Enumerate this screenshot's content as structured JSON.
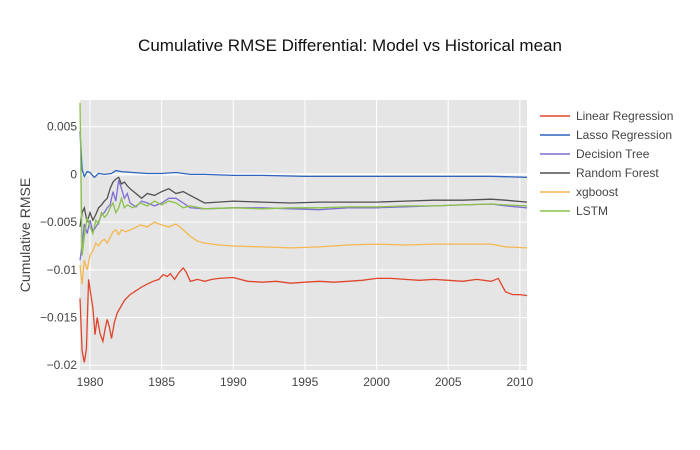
{
  "chart_data": {
    "type": "line",
    "title": "Cumulative RMSE Differential: Model vs Historical mean",
    "xlabel": "",
    "ylabel": "Cumulative RMSE",
    "xlim": [
      1979.3,
      2010.5
    ],
    "ylim": [
      -0.0205,
      0.0078
    ],
    "xticks": [
      1980,
      1985,
      1990,
      1995,
      2000,
      2005,
      2010
    ],
    "xtick_labels": [
      "1980",
      "1985",
      "1990",
      "1995",
      "2000",
      "2005",
      "2010"
    ],
    "yticks": [
      0.005,
      0,
      -0.005,
      -0.01,
      -0.015,
      -0.02
    ],
    "ytick_labels": [
      "0.005",
      "0",
      "−0.005",
      "−0.01",
      "−0.015",
      "−0.02"
    ],
    "grid": true,
    "legend_position": "top-right",
    "plot_background": "#e5e5e5",
    "series": [
      {
        "name": "Linear Regression",
        "color": "#e0452b",
        "points": [
          [
            1979.3,
            -0.013
          ],
          [
            1979.45,
            -0.0185
          ],
          [
            1979.6,
            -0.0197
          ],
          [
            1979.75,
            -0.0183
          ],
          [
            1979.9,
            -0.011
          ],
          [
            1980.05,
            -0.0125
          ],
          [
            1980.2,
            -0.014
          ],
          [
            1980.35,
            -0.0168
          ],
          [
            1980.5,
            -0.015
          ],
          [
            1980.7,
            -0.0167
          ],
          [
            1980.9,
            -0.0175
          ],
          [
            1981.05,
            -0.0162
          ],
          [
            1981.2,
            -0.0152
          ],
          [
            1981.35,
            -0.016
          ],
          [
            1981.5,
            -0.0172
          ],
          [
            1981.7,
            -0.0155
          ],
          [
            1981.9,
            -0.0145
          ],
          [
            1982.1,
            -0.014
          ],
          [
            1982.4,
            -0.0132
          ],
          [
            1982.8,
            -0.0126
          ],
          [
            1983.2,
            -0.0122
          ],
          [
            1983.6,
            -0.0118
          ],
          [
            1984.0,
            -0.0115
          ],
          [
            1984.4,
            -0.0112
          ],
          [
            1984.8,
            -0.011
          ],
          [
            1985.1,
            -0.0105
          ],
          [
            1985.4,
            -0.0107
          ],
          [
            1985.6,
            -0.0104
          ],
          [
            1985.9,
            -0.011
          ],
          [
            1986.2,
            -0.0103
          ],
          [
            1986.5,
            -0.0098
          ],
          [
            1986.7,
            -0.0102
          ],
          [
            1987.0,
            -0.0112
          ],
          [
            1987.5,
            -0.011
          ],
          [
            1988.0,
            -0.0112
          ],
          [
            1988.5,
            -0.011
          ],
          [
            1989.0,
            -0.0109
          ],
          [
            1990.0,
            -0.0108
          ],
          [
            1991.0,
            -0.0112
          ],
          [
            1992.0,
            -0.0113
          ],
          [
            1993.0,
            -0.0112
          ],
          [
            1994.0,
            -0.0114
          ],
          [
            1995.0,
            -0.0113
          ],
          [
            1996.0,
            -0.0112
          ],
          [
            1997.0,
            -0.0113
          ],
          [
            1998.0,
            -0.0112
          ],
          [
            1999.0,
            -0.0111
          ],
          [
            2000.0,
            -0.0109
          ],
          [
            2001.0,
            -0.0109
          ],
          [
            2002.0,
            -0.011
          ],
          [
            2003.0,
            -0.0111
          ],
          [
            2004.0,
            -0.011
          ],
          [
            2005.0,
            -0.0111
          ],
          [
            2006.0,
            -0.0112
          ],
          [
            2007.0,
            -0.011
          ],
          [
            2008.0,
            -0.0112
          ],
          [
            2008.5,
            -0.0109
          ],
          [
            2009.0,
            -0.0123
          ],
          [
            2009.5,
            -0.0126
          ],
          [
            2010.0,
            -0.0126
          ],
          [
            2010.5,
            -0.0127
          ]
        ]
      },
      {
        "name": "Lasso Regression",
        "color": "#2e64bd",
        "points": [
          [
            1979.3,
            0.0045
          ],
          [
            1979.45,
            0.0005
          ],
          [
            1979.6,
            -0.0002
          ],
          [
            1979.8,
            0.0003
          ],
          [
            1980.0,
            0.0002
          ],
          [
            1980.3,
            -0.0003
          ],
          [
            1980.6,
            0.0001
          ],
          [
            1981.0,
            0.0
          ],
          [
            1981.5,
            0.0001
          ],
          [
            1981.8,
            0.0004
          ],
          [
            1982.2,
            0.0003
          ],
          [
            1983.0,
            0.0002
          ],
          [
            1984.0,
            0.0001
          ],
          [
            1985.0,
            0.0001
          ],
          [
            1986.0,
            0.0002
          ],
          [
            1987.0,
            0.0
          ],
          [
            1988.0,
            0.0
          ],
          [
            1990.0,
            -0.0001
          ],
          [
            1992.0,
            -0.0001
          ],
          [
            1995.0,
            -0.0002
          ],
          [
            2000.0,
            -0.0002
          ],
          [
            2005.0,
            -0.0002
          ],
          [
            2008.0,
            -0.0002
          ],
          [
            2010.5,
            -0.0003
          ]
        ]
      },
      {
        "name": "Decision Tree",
        "color": "#7f6fd2",
        "points": [
          [
            1979.3,
            -0.009
          ],
          [
            1979.45,
            -0.0075
          ],
          [
            1979.6,
            -0.0052
          ],
          [
            1979.8,
            -0.0062
          ],
          [
            1980.0,
            -0.0048
          ],
          [
            1980.2,
            -0.006
          ],
          [
            1980.4,
            -0.0055
          ],
          [
            1980.6,
            -0.005
          ],
          [
            1980.8,
            -0.0042
          ],
          [
            1981.0,
            -0.004
          ],
          [
            1981.2,
            -0.0035
          ],
          [
            1981.4,
            -0.0032
          ],
          [
            1981.6,
            -0.0018
          ],
          [
            1981.8,
            -0.0028
          ],
          [
            1982.0,
            -0.0006
          ],
          [
            1982.2,
            -0.0015
          ],
          [
            1982.4,
            -0.0025
          ],
          [
            1982.6,
            -0.002
          ],
          [
            1982.8,
            -0.003
          ],
          [
            1983.2,
            -0.0034
          ],
          [
            1983.6,
            -0.0028
          ],
          [
            1984.0,
            -0.003
          ],
          [
            1984.5,
            -0.0033
          ],
          [
            1985.0,
            -0.003
          ],
          [
            1985.5,
            -0.0025
          ],
          [
            1986.0,
            -0.0025
          ],
          [
            1986.5,
            -0.003
          ],
          [
            1987.0,
            -0.0035
          ],
          [
            1988.0,
            -0.0036
          ],
          [
            1990.0,
            -0.0035
          ],
          [
            1992.0,
            -0.0035
          ],
          [
            1994.0,
            -0.0036
          ],
          [
            1996.0,
            -0.0037
          ],
          [
            1998.0,
            -0.0035
          ],
          [
            2000.0,
            -0.0035
          ],
          [
            2002.0,
            -0.0034
          ],
          [
            2004.0,
            -0.0033
          ],
          [
            2006.0,
            -0.0032
          ],
          [
            2008.0,
            -0.0031
          ],
          [
            2009.0,
            -0.0033
          ],
          [
            2010.5,
            -0.0035
          ]
        ]
      },
      {
        "name": "Random Forest",
        "color": "#505050",
        "points": [
          [
            1979.3,
            -0.0055
          ],
          [
            1979.45,
            -0.004
          ],
          [
            1979.6,
            -0.0035
          ],
          [
            1979.8,
            -0.005
          ],
          [
            1980.0,
            -0.004
          ],
          [
            1980.2,
            -0.0048
          ],
          [
            1980.4,
            -0.0042
          ],
          [
            1980.6,
            -0.0035
          ],
          [
            1980.8,
            -0.0032
          ],
          [
            1981.0,
            -0.0028
          ],
          [
            1981.2,
            -0.0025
          ],
          [
            1981.4,
            -0.0015
          ],
          [
            1981.6,
            -0.0008
          ],
          [
            1981.8,
            -0.0005
          ],
          [
            1982.0,
            -0.0003
          ],
          [
            1982.2,
            -0.001
          ],
          [
            1982.4,
            -0.0008
          ],
          [
            1982.6,
            -0.0012
          ],
          [
            1982.8,
            -0.0015
          ],
          [
            1983.2,
            -0.002
          ],
          [
            1983.6,
            -0.0025
          ],
          [
            1984.0,
            -0.002
          ],
          [
            1984.5,
            -0.0022
          ],
          [
            1985.0,
            -0.0018
          ],
          [
            1985.5,
            -0.0015
          ],
          [
            1986.0,
            -0.002
          ],
          [
            1986.5,
            -0.0018
          ],
          [
            1987.0,
            -0.0022
          ],
          [
            1988.0,
            -0.003
          ],
          [
            1990.0,
            -0.0028
          ],
          [
            1992.0,
            -0.0029
          ],
          [
            1994.0,
            -0.003
          ],
          [
            1996.0,
            -0.0029
          ],
          [
            1998.0,
            -0.0029
          ],
          [
            2000.0,
            -0.0029
          ],
          [
            2002.0,
            -0.0028
          ],
          [
            2004.0,
            -0.0027
          ],
          [
            2006.0,
            -0.0027
          ],
          [
            2008.0,
            -0.0026
          ],
          [
            2009.0,
            -0.0027
          ],
          [
            2010.5,
            -0.0029
          ]
        ]
      },
      {
        "name": "xgboost",
        "color": "#f5b74f",
        "points": [
          [
            1979.3,
            -0.0095
          ],
          [
            1979.45,
            -0.0115
          ],
          [
            1979.6,
            -0.009
          ],
          [
            1979.8,
            -0.01
          ],
          [
            1980.0,
            -0.0085
          ],
          [
            1980.2,
            -0.008
          ],
          [
            1980.4,
            -0.0072
          ],
          [
            1980.6,
            -0.0075
          ],
          [
            1980.8,
            -0.007
          ],
          [
            1981.0,
            -0.0068
          ],
          [
            1981.2,
            -0.0072
          ],
          [
            1981.4,
            -0.0066
          ],
          [
            1981.6,
            -0.006
          ],
          [
            1981.8,
            -0.0058
          ],
          [
            1982.0,
            -0.0063
          ],
          [
            1982.2,
            -0.0058
          ],
          [
            1982.5,
            -0.006
          ],
          [
            1983.0,
            -0.0057
          ],
          [
            1983.5,
            -0.0053
          ],
          [
            1984.0,
            -0.0055
          ],
          [
            1984.5,
            -0.005
          ],
          [
            1985.0,
            -0.0053
          ],
          [
            1985.5,
            -0.0055
          ],
          [
            1986.0,
            -0.0052
          ],
          [
            1986.5,
            -0.0058
          ],
          [
            1987.0,
            -0.0065
          ],
          [
            1987.5,
            -0.007
          ],
          [
            1988.0,
            -0.0072
          ],
          [
            1989.0,
            -0.0074
          ],
          [
            1990.0,
            -0.0075
          ],
          [
            1992.0,
            -0.0076
          ],
          [
            1994.0,
            -0.0077
          ],
          [
            1996.0,
            -0.0076
          ],
          [
            1998.0,
            -0.0074
          ],
          [
            2000.0,
            -0.0073
          ],
          [
            2002.0,
            -0.0074
          ],
          [
            2004.0,
            -0.0073
          ],
          [
            2006.0,
            -0.0073
          ],
          [
            2008.0,
            -0.0073
          ],
          [
            2009.0,
            -0.0076
          ],
          [
            2010.5,
            -0.0077
          ]
        ]
      },
      {
        "name": "LSTM",
        "color": "#8bc14a",
        "points": [
          [
            1979.3,
            0.0075
          ],
          [
            1979.45,
            -0.0085
          ],
          [
            1979.6,
            -0.0065
          ],
          [
            1979.8,
            -0.0045
          ],
          [
            1980.0,
            -0.0055
          ],
          [
            1980.2,
            -0.0062
          ],
          [
            1980.4,
            -0.0048
          ],
          [
            1980.6,
            -0.0052
          ],
          [
            1980.8,
            -0.004
          ],
          [
            1981.0,
            -0.0045
          ],
          [
            1981.2,
            -0.0042
          ],
          [
            1981.4,
            -0.0035
          ],
          [
            1981.6,
            -0.003
          ],
          [
            1981.8,
            -0.004
          ],
          [
            1982.0,
            -0.0035
          ],
          [
            1982.2,
            -0.0025
          ],
          [
            1982.4,
            -0.0035
          ],
          [
            1982.6,
            -0.0032
          ],
          [
            1983.0,
            -0.0035
          ],
          [
            1983.5,
            -0.003
          ],
          [
            1984.0,
            -0.0033
          ],
          [
            1984.5,
            -0.0028
          ],
          [
            1985.0,
            -0.0032
          ],
          [
            1985.5,
            -0.0028
          ],
          [
            1986.0,
            -0.003
          ],
          [
            1986.5,
            -0.0035
          ],
          [
            1987.0,
            -0.0033
          ],
          [
            1988.0,
            -0.0036
          ],
          [
            1990.0,
            -0.0035
          ],
          [
            1992.0,
            -0.0036
          ],
          [
            1994.0,
            -0.0035
          ],
          [
            1996.0,
            -0.0035
          ],
          [
            1998.0,
            -0.0034
          ],
          [
            2000.0,
            -0.0034
          ],
          [
            2002.0,
            -0.0033
          ],
          [
            2004.0,
            -0.0033
          ],
          [
            2006.0,
            -0.0032
          ],
          [
            2008.0,
            -0.0031
          ],
          [
            2009.0,
            -0.0032
          ],
          [
            2010.5,
            -0.0033
          ]
        ]
      }
    ]
  }
}
